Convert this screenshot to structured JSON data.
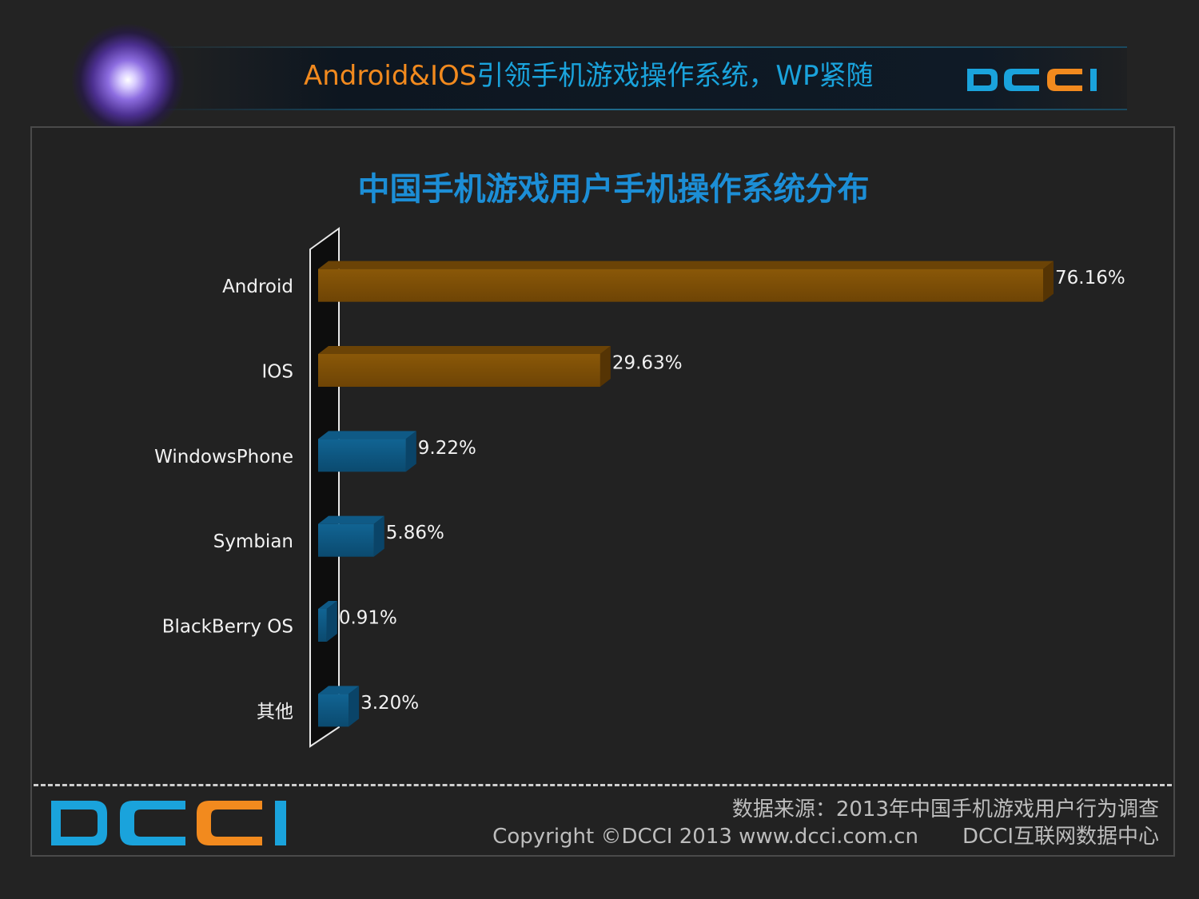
{
  "header": {
    "title_part1": "Android&IOS",
    "title_part2": "引领手机游戏操作系统，WP紧随",
    "logo_text": "DCCI"
  },
  "footer": {
    "source": "数据来源：2013年中国手机游戏用户行为调查",
    "copyright": "Copyright ©DCCI 2013 www.dcci.com.cn",
    "org": "DCCI互联网数据中心",
    "logo_text": "DCCI"
  },
  "colors": {
    "orange": "#f28a1e",
    "blue": "#1aa3dc",
    "bar_orange": "#7a4d06",
    "bar_blue": "#0e5680"
  },
  "chart_data": {
    "type": "bar",
    "orientation": "horizontal",
    "title": "中国手机游戏用户手机操作系统分布",
    "categories": [
      "Android",
      "IOS",
      "WindowsPhone",
      "Symbian",
      "BlackBerry OS",
      "其他"
    ],
    "values": [
      76.16,
      29.63,
      9.22,
      5.86,
      0.91,
      3.2
    ],
    "value_labels": [
      "76.16%",
      "29.63%",
      "9.22%",
      "5.86%",
      "0.91%",
      "3.20%"
    ],
    "bar_colors": [
      "orange",
      "orange",
      "blue",
      "blue",
      "blue",
      "blue"
    ],
    "xlim": [
      0,
      100
    ],
    "grid": false,
    "legend": "none"
  }
}
